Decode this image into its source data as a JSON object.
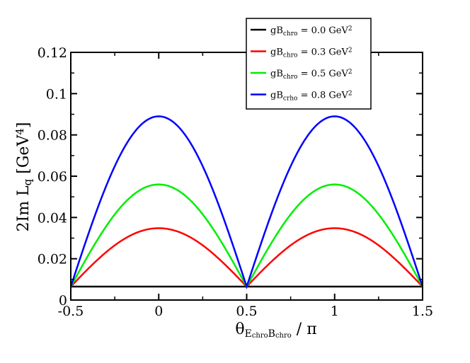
{
  "chart_data": {
    "type": "line",
    "title": "",
    "xlabel": {
      "base": "θ",
      "sub1": "E",
      "subsub1": "chro",
      "sub2": "B",
      "subsub2": "chro",
      "suffix": " / π"
    },
    "ylabel": {
      "prefix": "2Im L",
      "sub": "q",
      "unit": " [GeV",
      "sup": "4",
      "close": "]"
    },
    "xlim": [
      -0.5,
      1.5
    ],
    "ylim": [
      0,
      0.12
    ],
    "x_ticks": [
      -0.5,
      0,
      0.5,
      1,
      1.5
    ],
    "x_tick_labels": [
      "-0.5",
      "0",
      "0.5",
      "1",
      "1.5"
    ],
    "y_ticks": [
      0,
      0.02,
      0.04,
      0.06,
      0.08,
      0.1,
      0.12
    ],
    "y_tick_labels": [
      "0",
      "0.02",
      "0.04",
      "0.06",
      "0.08",
      "0.1",
      "0.12"
    ],
    "grid": false,
    "legend_position": "top-right",
    "series": [
      {
        "name": "gB_chro = 0.0 GeV^2",
        "legend": {
          "pre": "gB",
          "sub": "chro",
          "mid": " = 0.0 GeV",
          "sup": "2"
        },
        "color": "#000000",
        "baseline": 0.0065,
        "peak": 0.0065
      },
      {
        "name": "gB_chro = 0.3 GeV^2",
        "legend": {
          "pre": "gB",
          "sub": "chro",
          "mid": " = 0.3 GeV",
          "sup": "2"
        },
        "color": "#ff0000",
        "baseline": 0.0065,
        "peak": 0.0348
      },
      {
        "name": "gB_chro = 0.5 GeV^2",
        "legend": {
          "pre": "gB",
          "sub": "chro",
          "mid": " = 0.5 GeV",
          "sup": "2"
        },
        "color": "#00ee00",
        "baseline": 0.0065,
        "peak": 0.056
      },
      {
        "name": "gB_crho = 0.8 GeV^2",
        "legend": {
          "pre": "gB",
          "sub": "crho",
          "mid": " = 0.8 GeV",
          "sup": "2"
        },
        "color": "#0000ff",
        "baseline": 0.0065,
        "peak": 0.089
      }
    ]
  }
}
